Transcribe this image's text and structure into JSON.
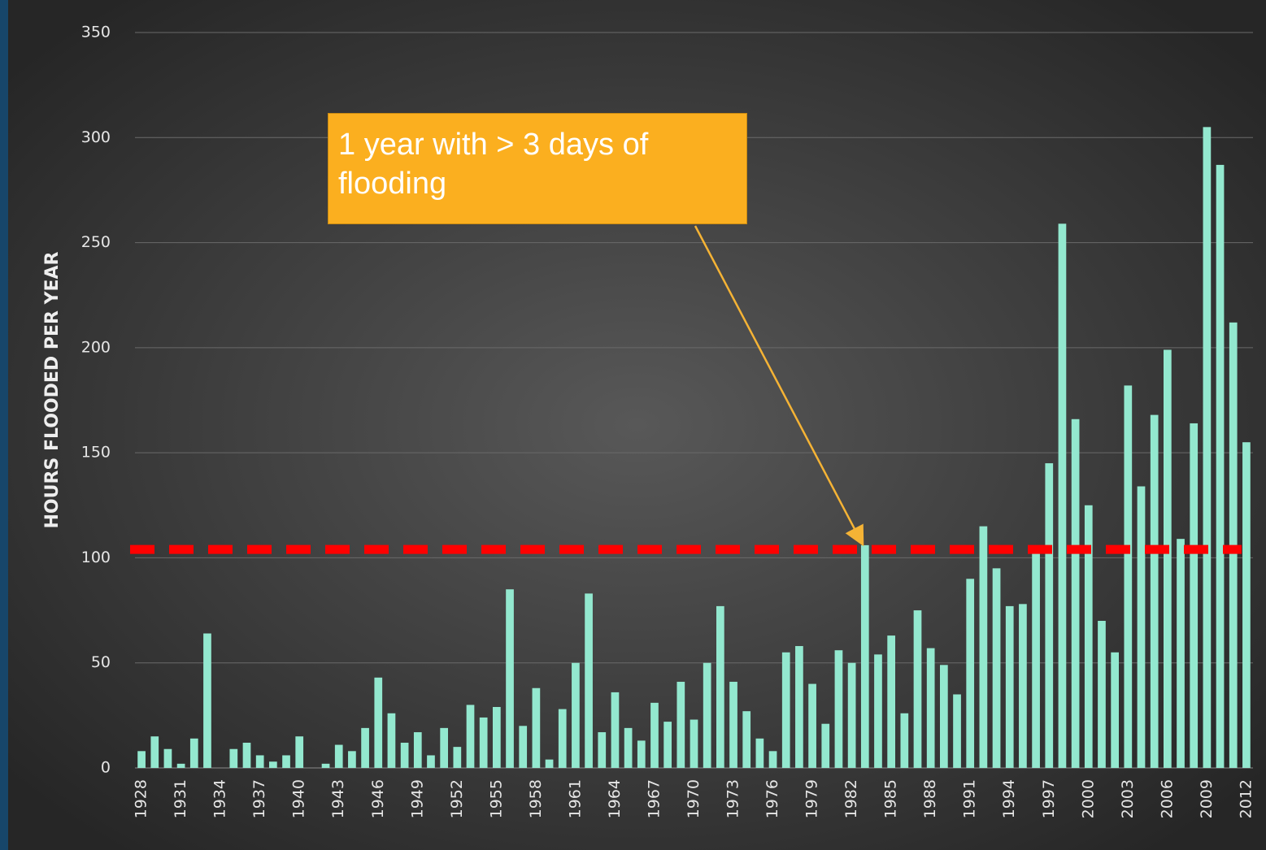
{
  "chart_data": {
    "type": "bar",
    "y_label": "HOURS FLOODED PER YEAR",
    "annotation": "1 year with > 3 days of flooding",
    "reference_line": 104,
    "reference_color": "#ff0000",
    "color": "#93e8cf",
    "grid": true,
    "ylim": [
      0,
      350
    ],
    "yticks": [
      0,
      50,
      100,
      150,
      200,
      250,
      300,
      350
    ],
    "categories": [
      "1928",
      null,
      null,
      "1931",
      null,
      null,
      "1934",
      null,
      null,
      "1937",
      null,
      null,
      "1940",
      null,
      null,
      "1943",
      null,
      null,
      "1946",
      null,
      null,
      "1949",
      null,
      null,
      "1952",
      null,
      null,
      "1955",
      null,
      null,
      "1958",
      null,
      null,
      "1961",
      null,
      null,
      "1964",
      null,
      null,
      "1967",
      null,
      null,
      "1970",
      null,
      null,
      "1973",
      null,
      null,
      "1976",
      null,
      null,
      "1979",
      null,
      null,
      "1982",
      null,
      null,
      "1985",
      null,
      null,
      "1988",
      null,
      null,
      "1991",
      null,
      null,
      "1994",
      null,
      null,
      "1997",
      null,
      null,
      "2000",
      null,
      null,
      "2003",
      null,
      null,
      "2006",
      null,
      null,
      "2009",
      null,
      null,
      "2012"
    ],
    "values": [
      8,
      15,
      9,
      2,
      14,
      64,
      0,
      9,
      12,
      6,
      3,
      6,
      15,
      0,
      2,
      11,
      8,
      19,
      43,
      26,
      12,
      17,
      6,
      19,
      10,
      30,
      24,
      29,
      85,
      20,
      38,
      4,
      28,
      50,
      83,
      17,
      36,
      19,
      13,
      31,
      22,
      41,
      23,
      50,
      77,
      41,
      27,
      14,
      8,
      55,
      58,
      40,
      21,
      56,
      50,
      106,
      54,
      63,
      26,
      75,
      57,
      49,
      35,
      90,
      115,
      95,
      77,
      78,
      103,
      145,
      259,
      166,
      125,
      70,
      55,
      182,
      134,
      168,
      199,
      109,
      164,
      305,
      287,
      212,
      155
    ]
  }
}
